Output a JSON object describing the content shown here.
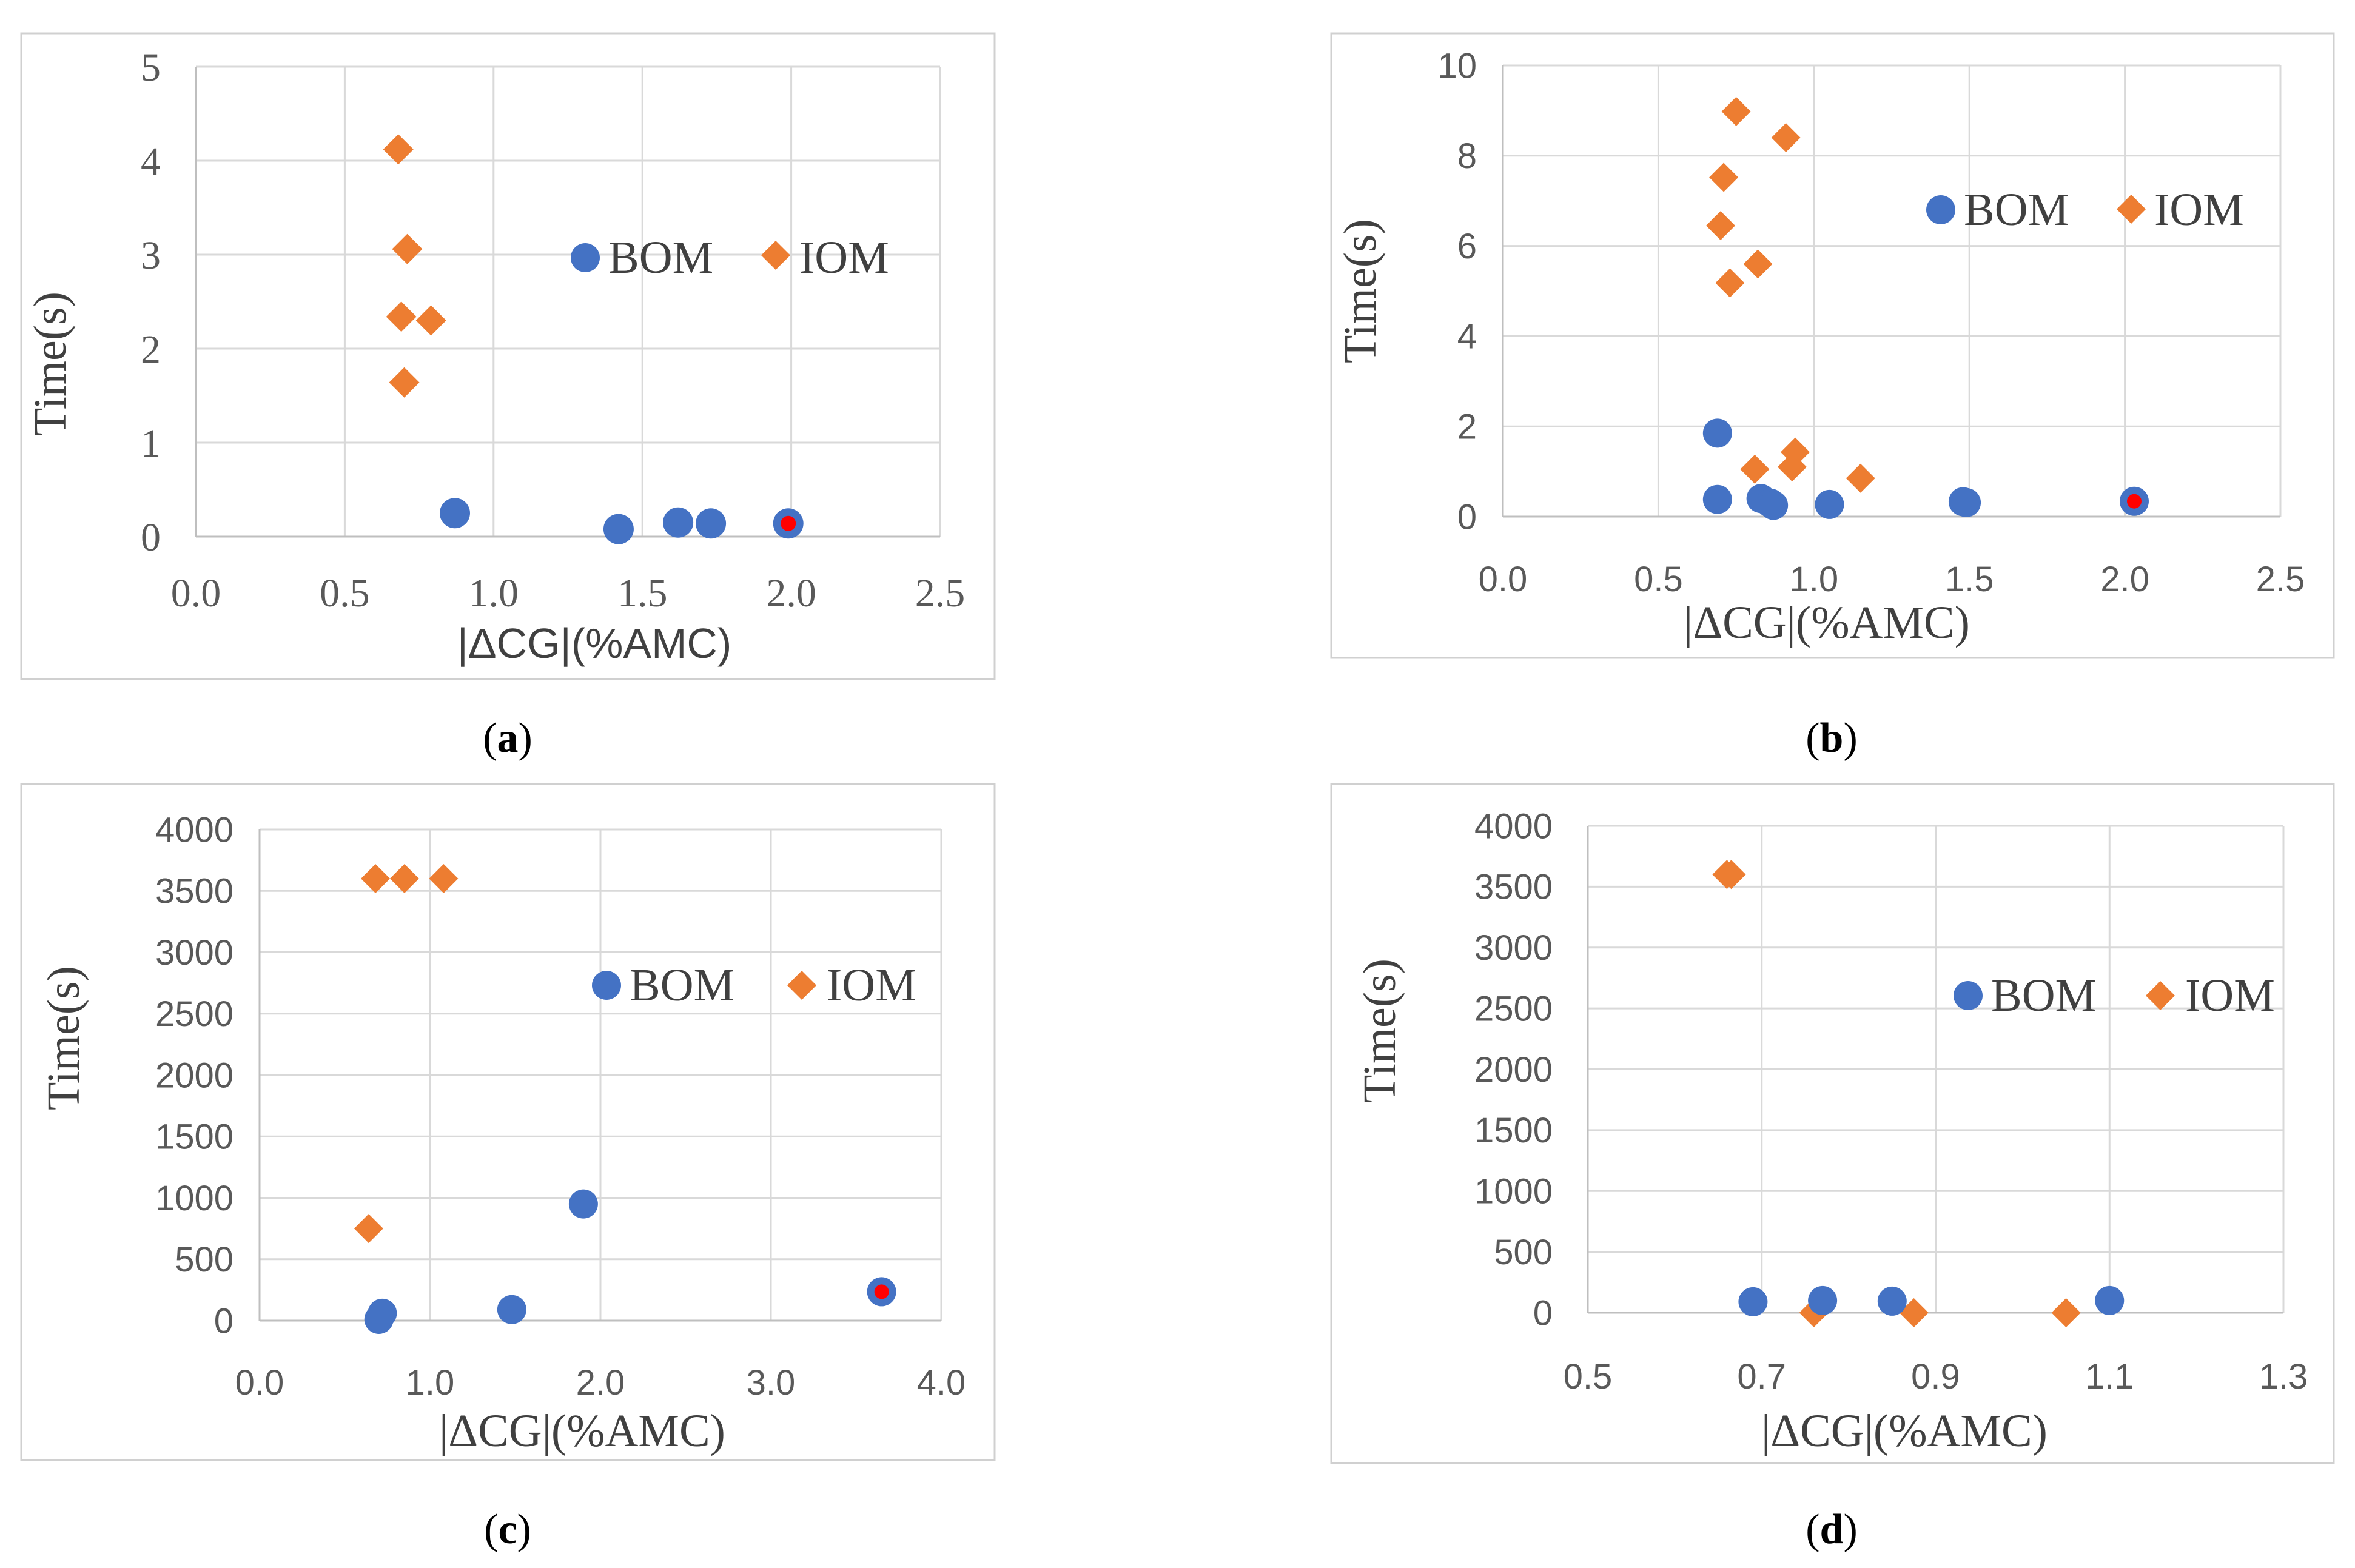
{
  "colors": {
    "bom": "#4472c4",
    "iom": "#ed7d31",
    "highlight": "#ff0000"
  },
  "chart_data": [
    {
      "id": "a",
      "type": "scatter",
      "caption": {
        "open": "(",
        "letter": "a",
        "close": ")"
      },
      "xlabel": "|ΔCG|(%AMC)",
      "ylabel": "Time(s)",
      "xlim": [
        0,
        2.5
      ],
      "ylim": [
        0,
        5
      ],
      "xticks": [
        "0.0",
        "0.5",
        "1.0",
        "1.5",
        "2.0",
        "2.5"
      ],
      "yticks": [
        "0",
        "1",
        "2",
        "3",
        "4",
        "5"
      ],
      "legend_position": "center-right",
      "series": [
        {
          "name": "BOM",
          "marker": "circle",
          "points": [
            [
              0.87,
              0.25
            ],
            [
              1.42,
              0.08
            ],
            [
              1.62,
              0.15
            ],
            [
              1.73,
              0.14
            ],
            [
              1.99,
              0.14
            ]
          ]
        },
        {
          "name": "IOM",
          "marker": "diamond",
          "points": [
            [
              0.68,
              4.12
            ],
            [
              0.71,
              3.06
            ],
            [
              0.69,
              2.34
            ],
            [
              0.79,
              2.3
            ],
            [
              0.7,
              1.64
            ]
          ]
        }
      ],
      "highlight_points": [
        [
          1.99,
          0.14
        ]
      ]
    },
    {
      "id": "b",
      "type": "scatter",
      "caption": {
        "open": "(",
        "letter": "b",
        "close": ")"
      },
      "xlabel": "|ΔCG|(%AMC)",
      "ylabel": "Time(s)",
      "xlim": [
        0,
        2.5
      ],
      "ylim": [
        0,
        10
      ],
      "xticks": [
        "0.0",
        "0.5",
        "1.0",
        "1.5",
        "2.0",
        "2.5"
      ],
      "yticks": [
        "0",
        "2",
        "4",
        "6",
        "8",
        "10"
      ],
      "legend_position": "center-right",
      "series": [
        {
          "name": "BOM",
          "marker": "circle",
          "points": [
            [
              0.69,
              1.85
            ],
            [
              0.69,
              0.38
            ],
            [
              0.83,
              0.4
            ],
            [
              0.86,
              0.3
            ],
            [
              0.87,
              0.25
            ],
            [
              1.05,
              0.27
            ],
            [
              1.48,
              0.33
            ],
            [
              1.49,
              0.31
            ],
            [
              2.03,
              0.34
            ]
          ]
        },
        {
          "name": "IOM",
          "marker": "diamond",
          "points": [
            [
              0.75,
              8.98
            ],
            [
              0.91,
              8.4
            ],
            [
              0.71,
              7.52
            ],
            [
              0.7,
              6.45
            ],
            [
              0.82,
              5.6
            ],
            [
              0.73,
              5.18
            ],
            [
              0.94,
              1.43
            ],
            [
              0.81,
              1.05
            ],
            [
              0.93,
              1.1
            ],
            [
              1.15,
              0.85
            ]
          ]
        }
      ],
      "highlight_points": [
        [
          2.03,
          0.34
        ]
      ]
    },
    {
      "id": "c",
      "type": "scatter",
      "caption": {
        "open": "(",
        "letter": "c",
        "close": ")"
      },
      "xlabel": "|ΔCG|(%AMC)",
      "ylabel": "Time(s)",
      "xlim": [
        0,
        4
      ],
      "ylim": [
        0,
        4000
      ],
      "xticks": [
        "0.0",
        "1.0",
        "2.0",
        "3.0",
        "4.0"
      ],
      "yticks": [
        "0",
        "500",
        "1000",
        "1500",
        "2000",
        "2500",
        "3000",
        "3500",
        "4000"
      ],
      "legend_position": "center-right",
      "series": [
        {
          "name": "BOM",
          "marker": "circle",
          "points": [
            [
              0.7,
              10
            ],
            [
              0.72,
              60
            ],
            [
              1.48,
              90
            ],
            [
              1.9,
              950
            ],
            [
              3.65,
              235
            ]
          ]
        },
        {
          "name": "IOM",
          "marker": "diamond",
          "points": [
            [
              0.68,
              3600
            ],
            [
              0.85,
              3600
            ],
            [
              1.08,
              3600
            ],
            [
              0.64,
              750
            ]
          ]
        }
      ],
      "highlight_points": [
        [
          3.65,
          235
        ]
      ]
    },
    {
      "id": "d",
      "type": "scatter",
      "caption": {
        "open": "(",
        "letter": "d",
        "close": ")"
      },
      "xlabel": "|ΔCG|(%AMC)",
      "ylabel": "Time(s)",
      "xlim": [
        0.5,
        1.3
      ],
      "ylim": [
        0,
        4000
      ],
      "xticks": [
        "0.5",
        "0.7",
        "0.9",
        "1.1",
        "1.3"
      ],
      "yticks": [
        "0",
        "500",
        "1000",
        "1500",
        "2000",
        "2500",
        "3000",
        "3500",
        "4000"
      ],
      "legend_position": "center-right",
      "series": [
        {
          "name": "BOM",
          "marker": "circle",
          "points": [
            [
              0.69,
              90
            ],
            [
              0.77,
              100
            ],
            [
              0.85,
              95
            ],
            [
              1.1,
              100
            ]
          ]
        },
        {
          "name": "IOM",
          "marker": "diamond",
          "points": [
            [
              0.66,
              3600
            ],
            [
              0.665,
              3600
            ],
            [
              0.76,
              0
            ],
            [
              0.875,
              0
            ],
            [
              1.05,
              0
            ]
          ]
        }
      ],
      "highlight_points": []
    }
  ]
}
